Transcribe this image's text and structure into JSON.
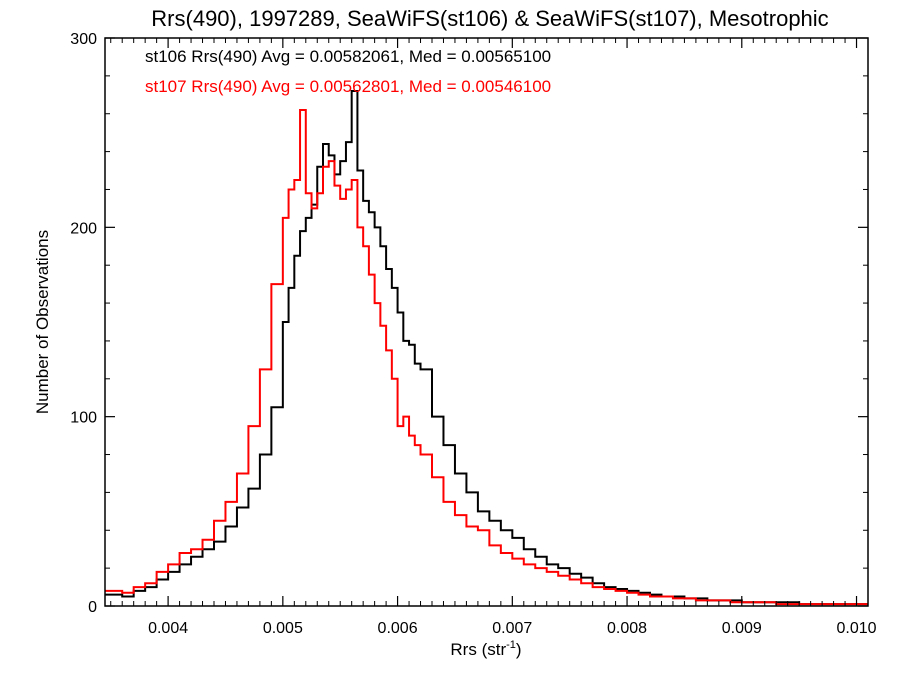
{
  "chart_data": {
    "type": "line",
    "title": "Rrs(490), 1997289, SeaWiFS(st106) & SeaWiFS(st107), Mesotrophic",
    "xlabel": "Rrs (str",
    "xlabel_sup": "-1",
    "xlabel_close": ")",
    "ylabel": "Number of Observations",
    "xlim": [
      0.00345,
      0.0101
    ],
    "ylim": [
      0,
      300
    ],
    "x_ticks": [
      "0.004",
      "0.005",
      "0.006",
      "0.007",
      "0.008",
      "0.009",
      "0.010"
    ],
    "x_tick_values": [
      0.004,
      0.005,
      0.006,
      0.007,
      0.008,
      0.009,
      0.01
    ],
    "y_ticks": [
      "0",
      "100",
      "200",
      "300"
    ],
    "y_tick_values": [
      0,
      100,
      200,
      300
    ],
    "grid": false,
    "step": true,
    "annotations": [
      {
        "text": "st106 Rrs(490) Avg = 0.00582061, Med = 0.00565100",
        "color": "#000000"
      },
      {
        "text": "st107 Rrs(490) Avg = 0.00562801, Med = 0.00546100",
        "color": "#ff0000"
      }
    ],
    "series": [
      {
        "color": "#000000",
        "points": [
          [
            0.00345,
            6
          ],
          [
            0.0036,
            5
          ],
          [
            0.0037,
            8
          ],
          [
            0.0038,
            10
          ],
          [
            0.0039,
            14
          ],
          [
            0.004,
            18
          ],
          [
            0.0041,
            22
          ],
          [
            0.0042,
            26
          ],
          [
            0.0043,
            30
          ],
          [
            0.0044,
            34
          ],
          [
            0.0045,
            42
          ],
          [
            0.0046,
            52
          ],
          [
            0.0047,
            62
          ],
          [
            0.0048,
            80
          ],
          [
            0.0049,
            105
          ],
          [
            0.005,
            150
          ],
          [
            0.00505,
            168
          ],
          [
            0.0051,
            185
          ],
          [
            0.00515,
            198
          ],
          [
            0.0052,
            205
          ],
          [
            0.00525,
            212
          ],
          [
            0.0053,
            232
          ],
          [
            0.00535,
            244
          ],
          [
            0.0054,
            238
          ],
          [
            0.00545,
            228
          ],
          [
            0.0055,
            235
          ],
          [
            0.00555,
            245
          ],
          [
            0.0056,
            272
          ],
          [
            0.00565,
            230
          ],
          [
            0.0057,
            214
          ],
          [
            0.00575,
            208
          ],
          [
            0.0058,
            200
          ],
          [
            0.00585,
            190
          ],
          [
            0.0059,
            178
          ],
          [
            0.00595,
            168
          ],
          [
            0.006,
            155
          ],
          [
            0.00605,
            140
          ],
          [
            0.0061,
            138
          ],
          [
            0.00615,
            128
          ],
          [
            0.0062,
            125
          ],
          [
            0.0063,
            100
          ],
          [
            0.0064,
            85
          ],
          [
            0.0065,
            70
          ],
          [
            0.0066,
            60
          ],
          [
            0.0067,
            50
          ],
          [
            0.0068,
            45
          ],
          [
            0.0069,
            40
          ],
          [
            0.007,
            36
          ],
          [
            0.0071,
            30
          ],
          [
            0.0072,
            26
          ],
          [
            0.0073,
            22
          ],
          [
            0.0074,
            20
          ],
          [
            0.0075,
            17
          ],
          [
            0.0076,
            15
          ],
          [
            0.0077,
            12
          ],
          [
            0.0078,
            10
          ],
          [
            0.0079,
            9
          ],
          [
            0.008,
            8
          ],
          [
            0.0081,
            7
          ],
          [
            0.0082,
            6
          ],
          [
            0.0083,
            5
          ],
          [
            0.0084,
            5
          ],
          [
            0.0085,
            4
          ],
          [
            0.0086,
            4
          ],
          [
            0.0087,
            3
          ],
          [
            0.0088,
            3
          ],
          [
            0.0089,
            3
          ],
          [
            0.009,
            2
          ],
          [
            0.0091,
            2
          ],
          [
            0.0092,
            2
          ],
          [
            0.0093,
            2
          ],
          [
            0.0094,
            2
          ],
          [
            0.0095,
            1
          ],
          [
            0.0096,
            1
          ],
          [
            0.0097,
            1
          ],
          [
            0.0098,
            1
          ],
          [
            0.0099,
            1
          ],
          [
            0.01,
            1
          ],
          [
            0.0101,
            1
          ]
        ]
      },
      {
        "color": "#ff0000",
        "points": [
          [
            0.00345,
            8
          ],
          [
            0.0036,
            7
          ],
          [
            0.0037,
            10
          ],
          [
            0.0038,
            12
          ],
          [
            0.0039,
            18
          ],
          [
            0.004,
            22
          ],
          [
            0.0041,
            28
          ],
          [
            0.0042,
            30
          ],
          [
            0.0043,
            35
          ],
          [
            0.0044,
            45
          ],
          [
            0.0045,
            55
          ],
          [
            0.0046,
            70
          ],
          [
            0.0047,
            95
          ],
          [
            0.0048,
            125
          ],
          [
            0.0049,
            170
          ],
          [
            0.005,
            205
          ],
          [
            0.00505,
            220
          ],
          [
            0.0051,
            225
          ],
          [
            0.00515,
            262
          ],
          [
            0.0052,
            218
          ],
          [
            0.00525,
            210
          ],
          [
            0.0053,
            218
          ],
          [
            0.00535,
            232
          ],
          [
            0.0054,
            235
          ],
          [
            0.00545,
            222
          ],
          [
            0.0055,
            215
          ],
          [
            0.00555,
            220
          ],
          [
            0.0056,
            225
          ],
          [
            0.00565,
            200
          ],
          [
            0.0057,
            190
          ],
          [
            0.00575,
            175
          ],
          [
            0.0058,
            160
          ],
          [
            0.00585,
            148
          ],
          [
            0.0059,
            135
          ],
          [
            0.00595,
            120
          ],
          [
            0.006,
            95
          ],
          [
            0.00605,
            100
          ],
          [
            0.0061,
            90
          ],
          [
            0.00615,
            85
          ],
          [
            0.0062,
            80
          ],
          [
            0.0063,
            68
          ],
          [
            0.0064,
            55
          ],
          [
            0.0065,
            48
          ],
          [
            0.0066,
            42
          ],
          [
            0.0067,
            40
          ],
          [
            0.0068,
            32
          ],
          [
            0.0069,
            28
          ],
          [
            0.007,
            25
          ],
          [
            0.0071,
            22
          ],
          [
            0.0072,
            20
          ],
          [
            0.0073,
            18
          ],
          [
            0.0074,
            16
          ],
          [
            0.0075,
            14
          ],
          [
            0.0076,
            12
          ],
          [
            0.0077,
            10
          ],
          [
            0.0078,
            9
          ],
          [
            0.0079,
            8
          ],
          [
            0.008,
            7
          ],
          [
            0.0081,
            6
          ],
          [
            0.0082,
            5
          ],
          [
            0.0083,
            5
          ],
          [
            0.0084,
            4
          ],
          [
            0.0085,
            4
          ],
          [
            0.0086,
            3
          ],
          [
            0.0087,
            3
          ],
          [
            0.0088,
            3
          ],
          [
            0.0089,
            2
          ],
          [
            0.009,
            2
          ],
          [
            0.0091,
            2
          ],
          [
            0.0092,
            2
          ],
          [
            0.0093,
            1
          ],
          [
            0.0094,
            1
          ],
          [
            0.0095,
            1
          ],
          [
            0.0096,
            1
          ],
          [
            0.0097,
            1
          ],
          [
            0.0098,
            1
          ],
          [
            0.0099,
            1
          ],
          [
            0.01,
            1
          ],
          [
            0.0101,
            1
          ]
        ]
      }
    ]
  }
}
